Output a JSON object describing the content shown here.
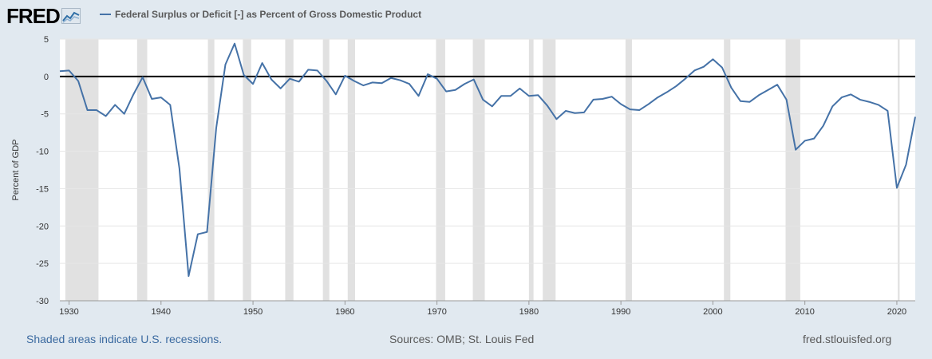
{
  "logo": {
    "text": "FRED"
  },
  "legend": {
    "label": "Federal Surplus or Deficit [-] as Percent of Gross Domestic Product"
  },
  "footer": {
    "recessions_note": "Shaded areas indicate U.S. recessions.",
    "sources": "Sources: OMB; St. Louis Fed",
    "site": "fred.stlouisfed.org"
  },
  "colors": {
    "line": "#4572a7",
    "recession": "#e1e1e1",
    "zero_line": "#000000"
  },
  "chart_data": {
    "type": "line",
    "title": "Federal Surplus or Deficit [-] as Percent of Gross Domestic Product",
    "xlabel": "",
    "ylabel": "Percent of GDP",
    "xlim": [
      1929,
      2022
    ],
    "ylim": [
      -30,
      5
    ],
    "yticks": [
      5,
      0,
      -5,
      -10,
      -15,
      -20,
      -25,
      -30
    ],
    "xticks": [
      1930,
      1940,
      1950,
      1960,
      1970,
      1980,
      1990,
      2000,
      2010,
      2020
    ],
    "zero_line": true,
    "recessions": [
      [
        1929.6,
        1933.2
      ],
      [
        1937.4,
        1938.5
      ],
      [
        1945.1,
        1945.8
      ],
      [
        1948.9,
        1949.8
      ],
      [
        1953.5,
        1954.4
      ],
      [
        1957.6,
        1958.3
      ],
      [
        1960.3,
        1961.1
      ],
      [
        1969.9,
        1970.9
      ],
      [
        1973.9,
        1975.2
      ],
      [
        1980.0,
        1980.5
      ],
      [
        1981.5,
        1982.9
      ],
      [
        1990.5,
        1991.2
      ],
      [
        2001.2,
        2001.9
      ],
      [
        2007.9,
        2009.5
      ],
      [
        2020.1,
        2020.3
      ]
    ],
    "series": [
      {
        "name": "Federal Surplus or Deficit [-] as Percent of Gross Domestic Product",
        "x": [
          1929,
          1930,
          1931,
          1932,
          1933,
          1934,
          1935,
          1936,
          1937,
          1938,
          1939,
          1940,
          1941,
          1942,
          1943,
          1944,
          1945,
          1946,
          1947,
          1948,
          1949,
          1950,
          1951,
          1952,
          1953,
          1954,
          1955,
          1956,
          1957,
          1958,
          1959,
          1960,
          1961,
          1962,
          1963,
          1964,
          1965,
          1966,
          1967,
          1968,
          1969,
          1970,
          1971,
          1972,
          1973,
          1974,
          1975,
          1976,
          1977,
          1978,
          1979,
          1980,
          1981,
          1982,
          1983,
          1984,
          1985,
          1986,
          1987,
          1988,
          1989,
          1990,
          1991,
          1992,
          1993,
          1994,
          1995,
          1996,
          1997,
          1998,
          1999,
          2000,
          2001,
          2002,
          2003,
          2004,
          2005,
          2006,
          2007,
          2008,
          2009,
          2010,
          2011,
          2012,
          2013,
          2014,
          2015,
          2016,
          2017,
          2018,
          2019,
          2020,
          2021,
          2022
        ],
        "values": [
          0.7,
          0.8,
          -0.6,
          -4.5,
          -4.5,
          -5.3,
          -3.8,
          -5.0,
          -2.4,
          -0.1,
          -3.0,
          -2.8,
          -3.8,
          -12.3,
          -26.7,
          -21.1,
          -20.8,
          -6.9,
          1.6,
          4.4,
          0.2,
          -1.0,
          1.8,
          -0.4,
          -1.6,
          -0.3,
          -0.7,
          0.9,
          0.8,
          -0.6,
          -2.4,
          0.1,
          -0.6,
          -1.2,
          -0.8,
          -0.9,
          -0.2,
          -0.5,
          -1.0,
          -2.6,
          0.3,
          -0.3,
          -2.0,
          -1.8,
          -1.0,
          -0.4,
          -3.1,
          -4.0,
          -2.6,
          -2.6,
          -1.6,
          -2.6,
          -2.5,
          -3.9,
          -5.7,
          -4.6,
          -4.9,
          -4.8,
          -3.1,
          -3.0,
          -2.7,
          -3.7,
          -4.4,
          -4.5,
          -3.7,
          -2.8,
          -2.1,
          -1.3,
          -0.3,
          0.8,
          1.3,
          2.3,
          1.2,
          -1.5,
          -3.3,
          -3.4,
          -2.5,
          -1.8,
          -1.1,
          -3.1,
          -9.8,
          -8.6,
          -8.3,
          -6.6,
          -4.0,
          -2.8,
          -2.4,
          -3.1,
          -3.4,
          -3.8,
          -4.6,
          -14.9,
          -11.8,
          -5.4
        ]
      }
    ]
  }
}
